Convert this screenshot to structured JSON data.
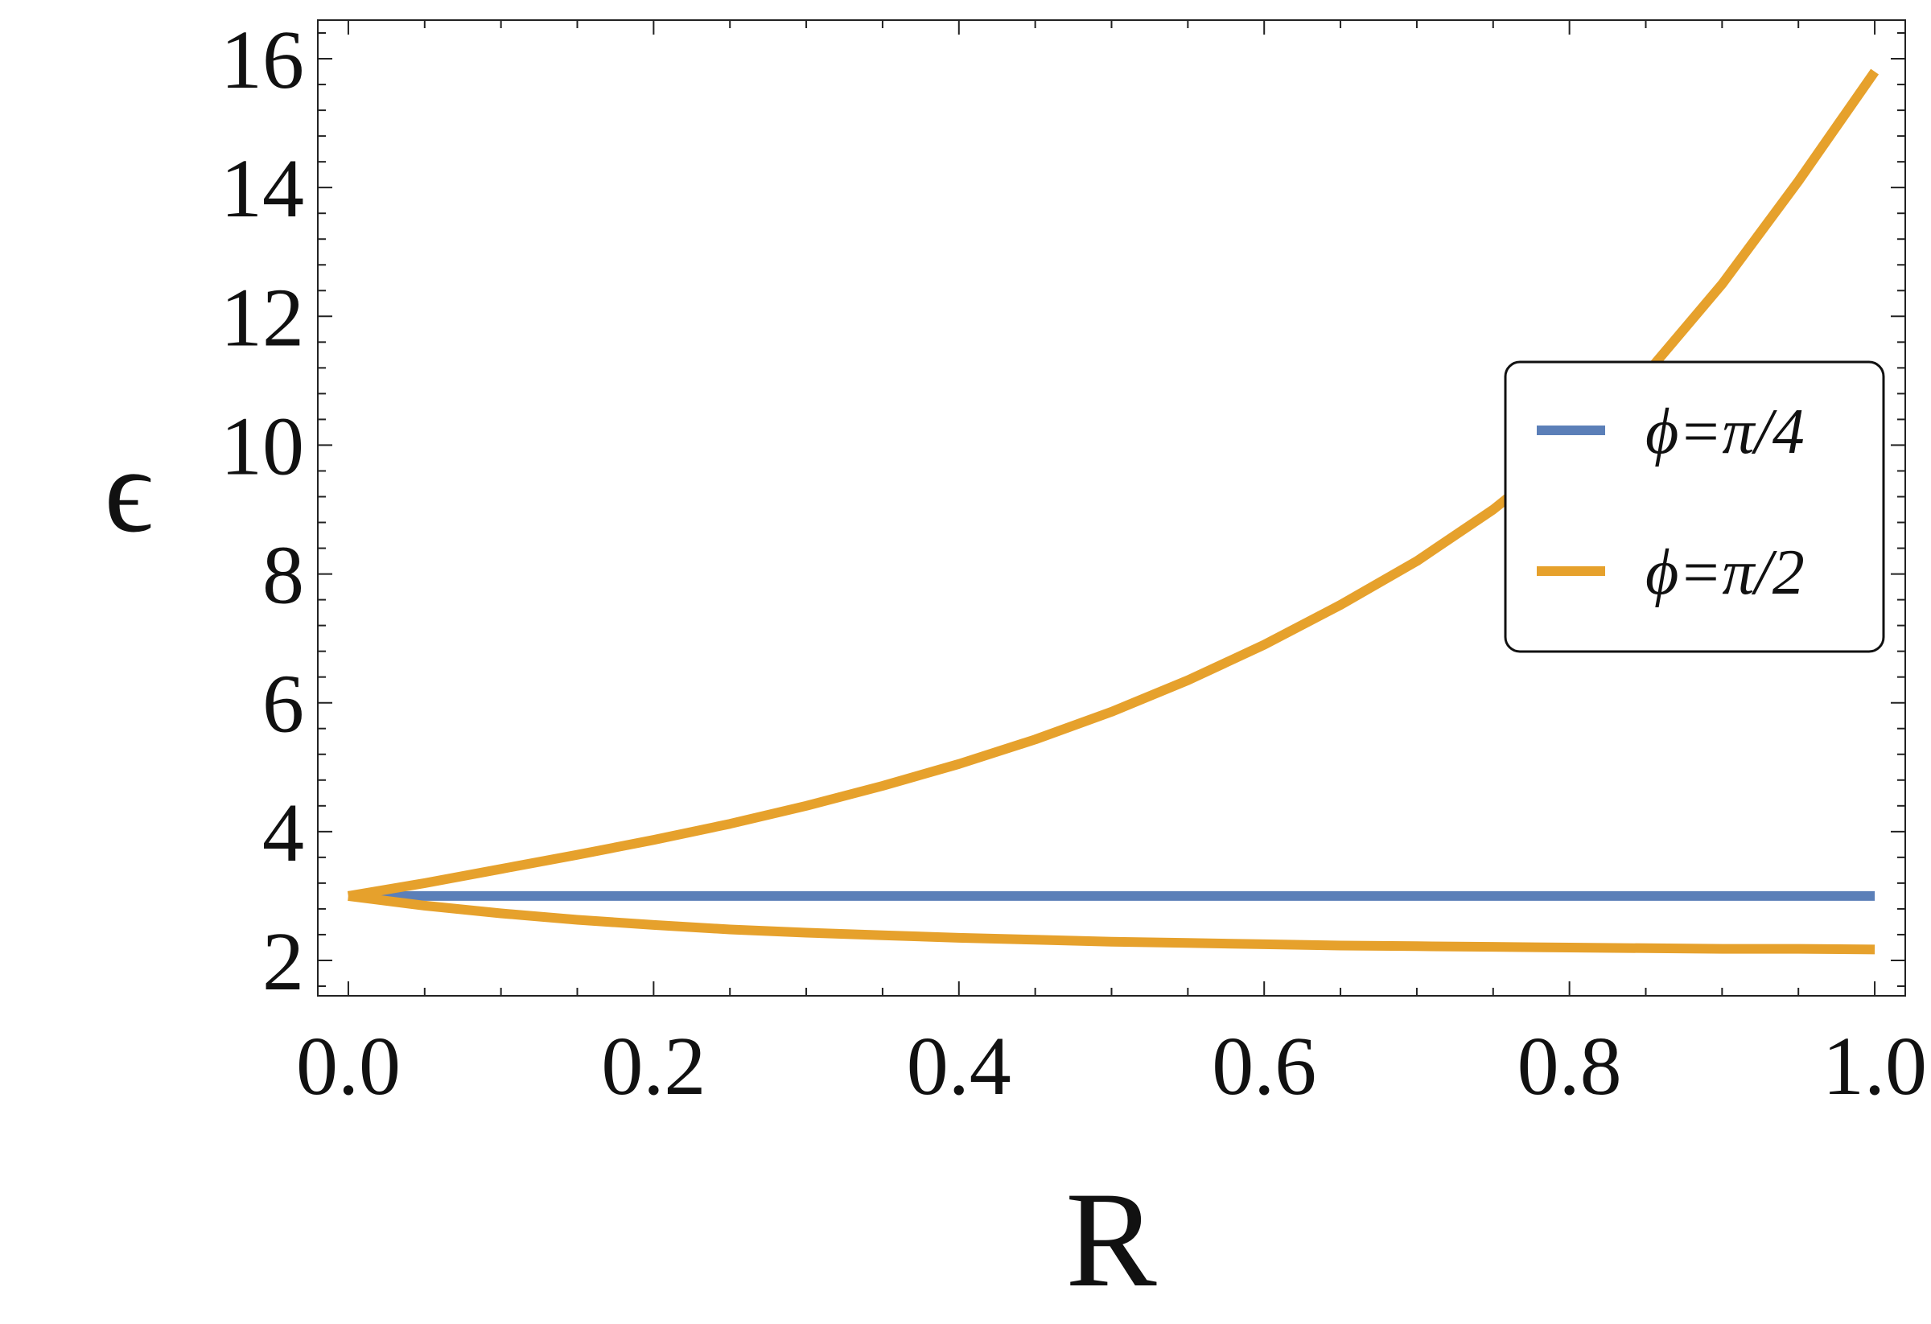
{
  "chart_data": {
    "type": "line",
    "title": "",
    "xlabel": "R",
    "ylabel": "ϵ",
    "xlim": [
      -0.02,
      1.02
    ],
    "ylim": [
      1.45,
      16.6
    ],
    "xticks": [
      0.0,
      0.2,
      0.4,
      0.6,
      0.8,
      1.0
    ],
    "xtick_labels": [
      "0.0",
      "0.2",
      "0.4",
      "0.6",
      "0.8",
      "1.0"
    ],
    "yticks": [
      2,
      4,
      6,
      8,
      10,
      12,
      14,
      16
    ],
    "ytick_labels": [
      "2",
      "4",
      "6",
      "8",
      "10",
      "12",
      "14",
      "16"
    ],
    "grid": false,
    "legend_position": "right",
    "series": [
      {
        "name": "ϕ=π/4",
        "color": "#5b7fb8",
        "x": [
          0.0,
          1.0
        ],
        "y": [
          3.0,
          3.0
        ]
      },
      {
        "name": "ϕ=π/2",
        "color": "#e6a12c",
        "x": [
          0.0,
          0.05,
          0.1,
          0.15,
          0.2,
          0.25,
          0.3,
          0.35,
          0.4,
          0.45,
          0.5,
          0.55,
          0.6,
          0.65,
          0.7,
          0.75,
          0.8,
          0.85,
          0.9,
          0.95,
          1.0
        ],
        "y": [
          3.0,
          3.2,
          3.42,
          3.64,
          3.87,
          4.12,
          4.4,
          4.71,
          5.05,
          5.43,
          5.86,
          6.35,
          6.9,
          7.52,
          8.2,
          9.0,
          9.95,
          11.1,
          12.5,
          14.1,
          15.8
        ]
      },
      {
        "name": "",
        "color": "#e6a12c",
        "x": [
          0.0,
          0.05,
          0.1,
          0.15,
          0.2,
          0.25,
          0.3,
          0.35,
          0.4,
          0.45,
          0.5,
          0.55,
          0.6,
          0.65,
          0.7,
          0.75,
          0.8,
          0.85,
          0.9,
          0.95,
          1.0
        ],
        "y": [
          3.0,
          2.85,
          2.73,
          2.63,
          2.55,
          2.48,
          2.43,
          2.39,
          2.35,
          2.32,
          2.29,
          2.27,
          2.25,
          2.23,
          2.22,
          2.21,
          2.2,
          2.19,
          2.18,
          2.18,
          2.17
        ]
      }
    ]
  }
}
